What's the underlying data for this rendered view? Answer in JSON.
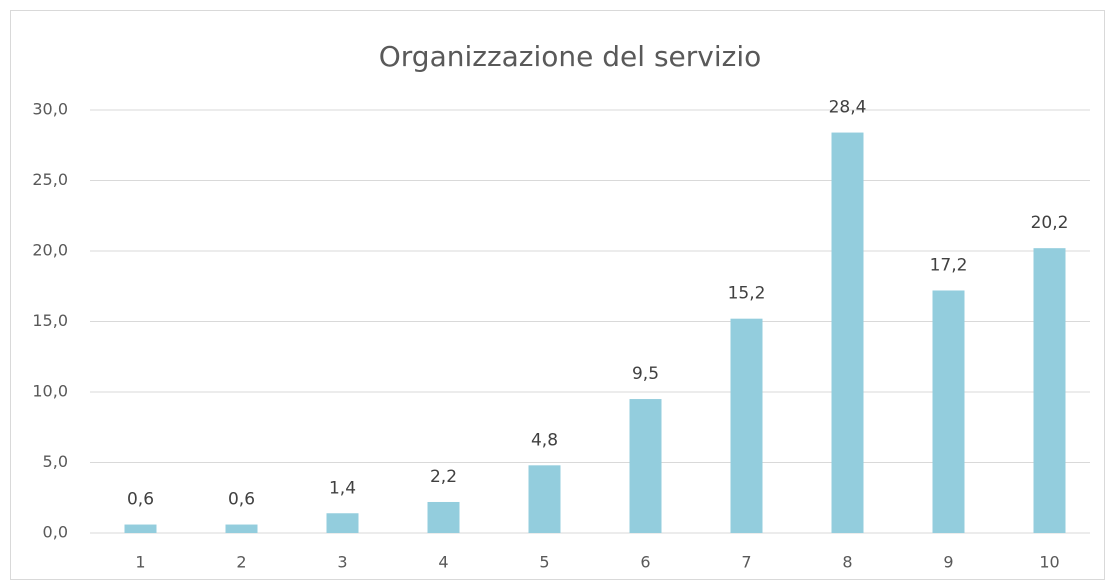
{
  "chart_data": {
    "type": "bar",
    "title": "Organizzazione del servizio",
    "categories": [
      "1",
      "2",
      "3",
      "4",
      "5",
      "6",
      "7",
      "8",
      "9",
      "10"
    ],
    "values": [
      0.6,
      0.6,
      1.4,
      2.2,
      4.8,
      9.5,
      15.2,
      28.4,
      17.2,
      20.2
    ],
    "value_labels": [
      "0,6",
      "0,6",
      "1,4",
      "2,2",
      "4,8",
      "9,5",
      "15,2",
      "28,4",
      "17,2",
      "20,2"
    ],
    "color": "#93cddd",
    "ylim": [
      0,
      30
    ],
    "yticks": [
      {
        "value": 0,
        "label": "0,0"
      },
      {
        "value": 5,
        "label": "5,0"
      },
      {
        "value": 10,
        "label": "10,0"
      },
      {
        "value": 15,
        "label": "15,0"
      },
      {
        "value": 20,
        "label": "20,0"
      },
      {
        "value": 25,
        "label": "25,0"
      },
      {
        "value": 30,
        "label": "30,0"
      }
    ],
    "grid": true
  }
}
